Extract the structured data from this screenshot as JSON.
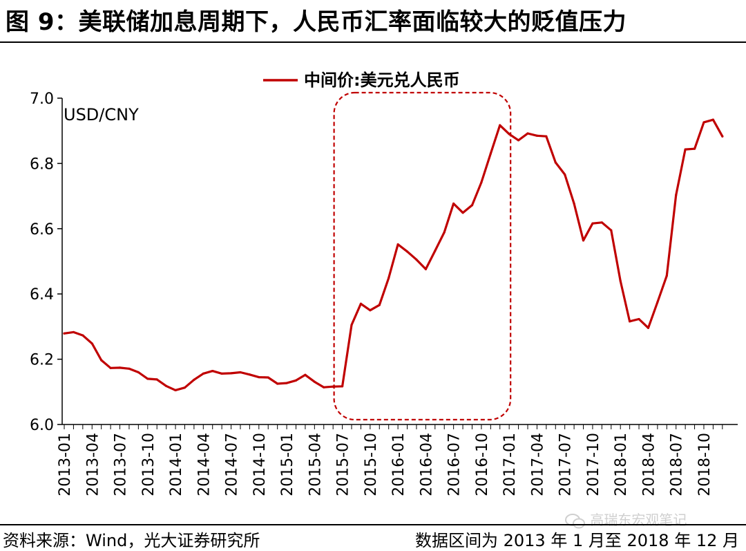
{
  "header": {
    "title": "图 9：美联储加息周期下，人民币汇率面临较大的贬值压力"
  },
  "footer": {
    "source": "资料来源：Wind，光大证券研究所",
    "range": "数据区间为 2013 年 1 月至 2018 年 12 月"
  },
  "watermark": {
    "text": "高瑞东宏观笔记",
    "icon": "wechat-icon"
  },
  "chart_data": {
    "type": "line",
    "ylabel": "USD/CNY",
    "xlabel": "",
    "ylim": [
      6.0,
      7.0
    ],
    "yticks": [
      "6.0",
      "6.2",
      "6.4",
      "6.6",
      "6.8",
      "7.0"
    ],
    "xtick_labels": [
      "2013-01",
      "2013-04",
      "2013-07",
      "2013-10",
      "2014-01",
      "2014-04",
      "2014-07",
      "2014-10",
      "2015-01",
      "2015-04",
      "2015-07",
      "2015-10",
      "2016-01",
      "2016-04",
      "2016-07",
      "2016-10",
      "2017-01",
      "2017-04",
      "2017-07",
      "2017-10",
      "2018-01",
      "2018-04",
      "2018-07",
      "2018-10"
    ],
    "grid": false,
    "legend_position": "top-center",
    "line_color": "#C00000",
    "highlight_box": {
      "from": "2015-07",
      "to": "2017-01",
      "style": "dashed-rounded",
      "color": "#C00000"
    },
    "series": [
      {
        "name": "中间价:美元兑人民币",
        "x": [
          "2013-01",
          "2013-02",
          "2013-03",
          "2013-04",
          "2013-05",
          "2013-06",
          "2013-07",
          "2013-08",
          "2013-09",
          "2013-10",
          "2013-11",
          "2013-12",
          "2014-01",
          "2014-02",
          "2014-03",
          "2014-04",
          "2014-05",
          "2014-06",
          "2014-07",
          "2014-08",
          "2014-09",
          "2014-10",
          "2014-11",
          "2014-12",
          "2015-01",
          "2015-02",
          "2015-03",
          "2015-04",
          "2015-05",
          "2015-06",
          "2015-07",
          "2015-08",
          "2015-09",
          "2015-10",
          "2015-11",
          "2015-12",
          "2016-01",
          "2016-02",
          "2016-03",
          "2016-04",
          "2016-05",
          "2016-06",
          "2016-07",
          "2016-08",
          "2016-09",
          "2016-10",
          "2016-11",
          "2016-12",
          "2017-01",
          "2017-02",
          "2017-03",
          "2017-04",
          "2017-05",
          "2017-06",
          "2017-07",
          "2017-08",
          "2017-09",
          "2017-10",
          "2017-11",
          "2017-12",
          "2018-01",
          "2018-02",
          "2018-03",
          "2018-04",
          "2018-05",
          "2018-06",
          "2018-07",
          "2018-08",
          "2018-09",
          "2018-10",
          "2018-11",
          "2018-12"
        ],
        "values": [
          6.279,
          6.283,
          6.273,
          6.248,
          6.197,
          6.173,
          6.174,
          6.171,
          6.16,
          6.14,
          6.138,
          6.118,
          6.105,
          6.113,
          6.137,
          6.156,
          6.164,
          6.156,
          6.157,
          6.16,
          6.153,
          6.145,
          6.144,
          6.125,
          6.127,
          6.135,
          6.152,
          6.131,
          6.114,
          6.116,
          6.117,
          6.305,
          6.37,
          6.35,
          6.366,
          6.449,
          6.552,
          6.53,
          6.505,
          6.476,
          6.532,
          6.589,
          6.677,
          6.649,
          6.672,
          6.742,
          6.83,
          6.917,
          6.89,
          6.871,
          6.892,
          6.885,
          6.883,
          6.803,
          6.766,
          6.677,
          6.564,
          6.616,
          6.619,
          6.595,
          6.44,
          6.316,
          6.323,
          6.296,
          6.375,
          6.456,
          6.703,
          6.843,
          6.845,
          6.926,
          6.934,
          6.883
        ]
      }
    ]
  }
}
